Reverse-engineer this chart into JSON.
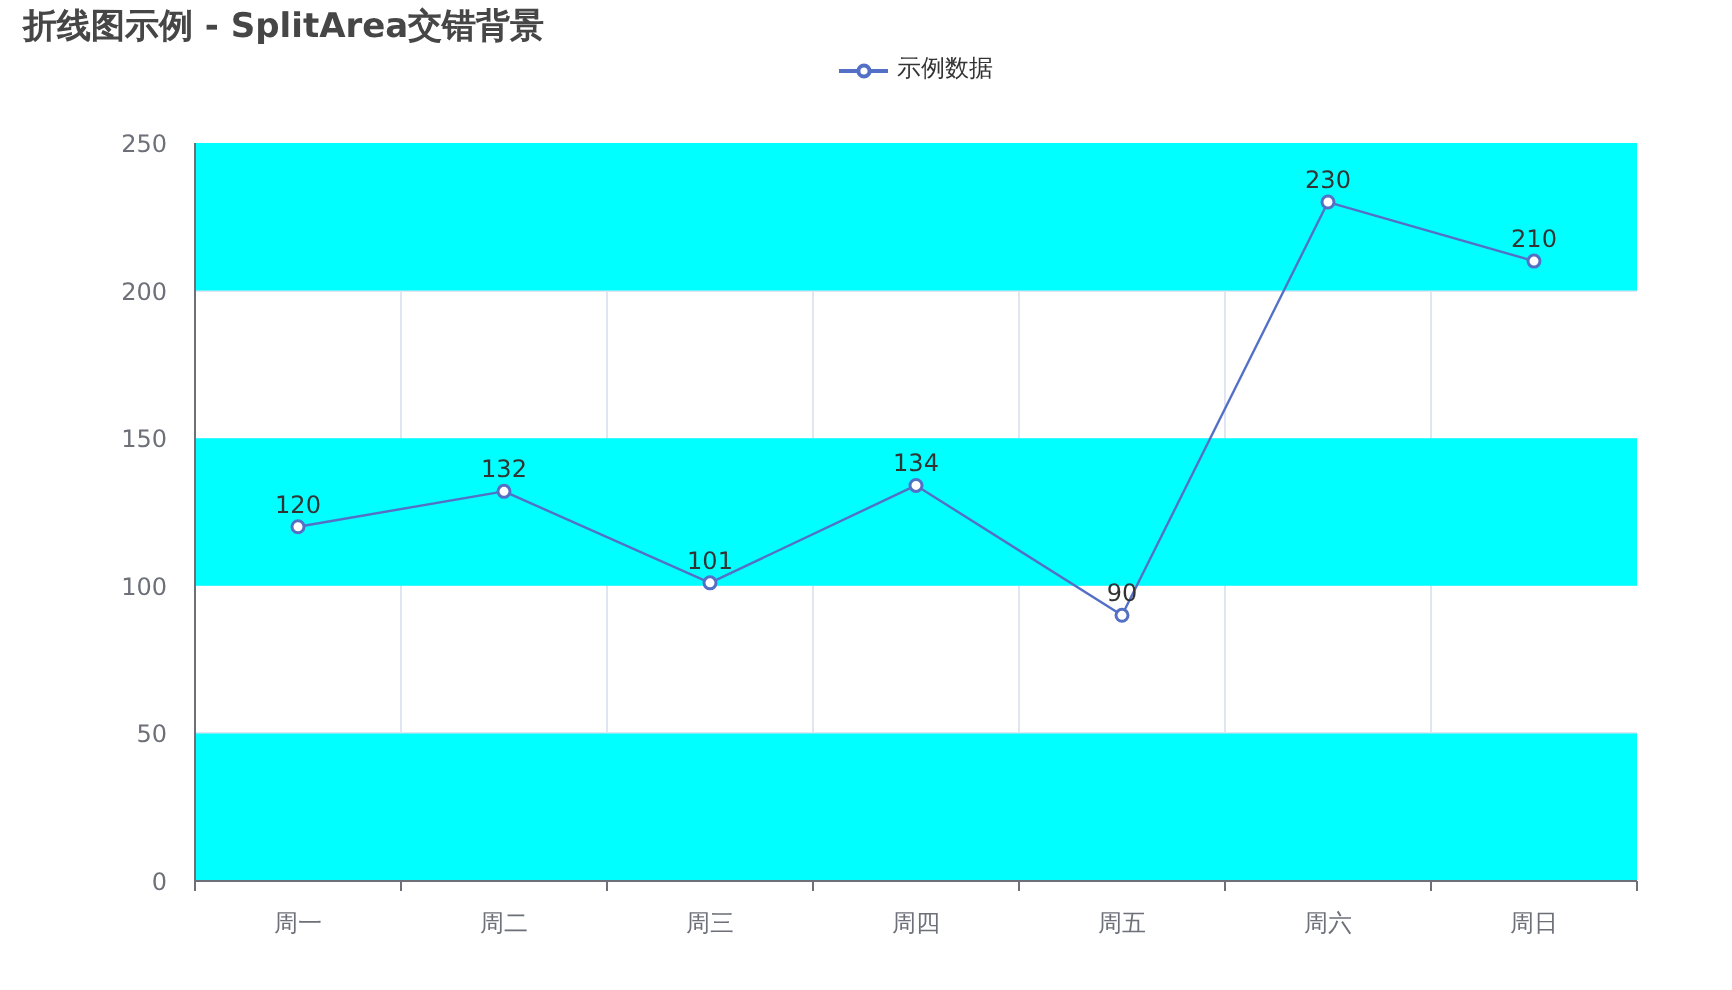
{
  "chart_data": {
    "type": "line",
    "title": "折线图示例 - SplitArea交错背景",
    "categories": [
      "周一",
      "周二",
      "周三",
      "周四",
      "周五",
      "周六",
      "周日"
    ],
    "series": [
      {
        "name": "示例数据",
        "color": "#5470c6",
        "values": [
          120,
          132,
          101,
          134,
          90,
          230,
          210
        ]
      }
    ],
    "ylim": [
      0,
      250
    ],
    "yticks": [
      0,
      50,
      100,
      150,
      200,
      250
    ],
    "grid": true,
    "legend": "top",
    "marker": "circle",
    "line_style": "solid",
    "data_labels": true,
    "bands": [
      {
        "axis": "y",
        "from": 0,
        "to": 50,
        "color": "#00ffff"
      },
      {
        "axis": "y",
        "from": 100,
        "to": 150,
        "color": "#00ffff"
      },
      {
        "axis": "y",
        "from": 200,
        "to": 250,
        "color": "#00ffff"
      }
    ]
  }
}
